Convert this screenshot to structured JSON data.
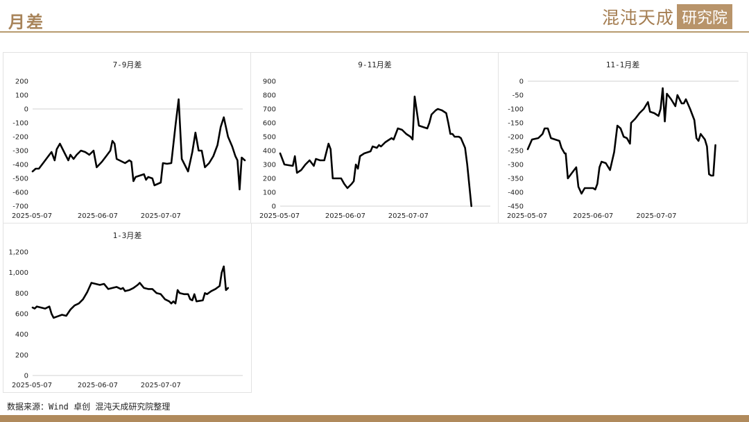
{
  "header": {
    "title": "月差"
  },
  "logo": {
    "part1": "混沌天成",
    "part2": "研究院"
  },
  "footer": {
    "source": "数据来源：Wind 卓创 混沌天成研究院整理"
  },
  "colors": {
    "line": "#000000",
    "accent": "#b08a5c",
    "axis": "#d0d0d0"
  },
  "chart_data": [
    {
      "type": "line",
      "title": "7-9月差",
      "x_ticks": [
        "2025-05-07",
        "2025-06-07",
        "2025-07-07"
      ],
      "ylim": [
        -700,
        200
      ],
      "y_ticks": [
        200,
        100,
        0,
        -100,
        -200,
        -300,
        -400,
        -500,
        -600,
        -700
      ],
      "zero_line": 0,
      "x_range": [
        0,
        100
      ],
      "tick_positions": [
        0,
        31,
        61
      ],
      "series": [
        {
          "values": [
            [
              0,
              -450
            ],
            [
              1.5,
              -430
            ],
            [
              3,
              -430
            ],
            [
              6,
              -370
            ],
            [
              8,
              -330
            ],
            [
              9,
              -310
            ],
            [
              10.5,
              -370
            ],
            [
              11.5,
              -290
            ],
            [
              13,
              -250
            ],
            [
              15,
              -310
            ],
            [
              17,
              -370
            ],
            [
              18,
              -330
            ],
            [
              19.5,
              -360
            ],
            [
              21,
              -330
            ],
            [
              23,
              -300
            ],
            [
              25,
              -310
            ],
            [
              27,
              -330
            ],
            [
              29,
              -300
            ],
            [
              30.5,
              -420
            ],
            [
              33,
              -380
            ],
            [
              35,
              -340
            ],
            [
              37,
              -300
            ],
            [
              38,
              -230
            ],
            [
              39,
              -250
            ],
            [
              40,
              -360
            ],
            [
              42,
              -375
            ],
            [
              44,
              -390
            ],
            [
              46,
              -370
            ],
            [
              47,
              -380
            ],
            [
              48,
              -520
            ],
            [
              49,
              -490
            ],
            [
              51,
              -480
            ],
            [
              53,
              -470
            ],
            [
              54,
              -510
            ],
            [
              55,
              -490
            ],
            [
              57,
              -500
            ],
            [
              58,
              -550
            ],
            [
              61,
              -530
            ],
            [
              62,
              -390
            ],
            [
              64,
              -395
            ],
            [
              66,
              -390
            ],
            [
              68,
              -120
            ],
            [
              69.5,
              70
            ],
            [
              71,
              -360
            ],
            [
              74,
              -450
            ],
            [
              76,
              -310
            ],
            [
              77.5,
              -170
            ],
            [
              79,
              -300
            ],
            [
              80.5,
              -300
            ],
            [
              82,
              -420
            ],
            [
              84,
              -390
            ],
            [
              86,
              -340
            ],
            [
              88,
              -260
            ],
            [
              89.5,
              -130
            ],
            [
              91,
              -60
            ],
            [
              93,
              -200
            ],
            [
              95,
              -270
            ],
            [
              96.5,
              -340
            ],
            [
              97.5,
              -370
            ],
            [
              98.5,
              -580
            ],
            [
              99.5,
              -350
            ],
            [
              101,
              -370
            ]
          ]
        }
      ]
    },
    {
      "type": "line",
      "title": "9-11月差",
      "x_ticks": [
        "2025-05-07",
        "2025-06-07",
        "2025-07-07"
      ],
      "ylim": [
        0,
        900
      ],
      "y_ticks": [
        900,
        800,
        700,
        600,
        500,
        400,
        300,
        200,
        100,
        0
      ],
      "zero_line": 0,
      "x_range": [
        0,
        100
      ],
      "tick_positions": [
        0,
        31,
        61
      ],
      "series": [
        {
          "values": [
            [
              0,
              380
            ],
            [
              2,
              300
            ],
            [
              4,
              295
            ],
            [
              6,
              290
            ],
            [
              7,
              360
            ],
            [
              8,
              240
            ],
            [
              10,
              260
            ],
            [
              12,
              300
            ],
            [
              14,
              330
            ],
            [
              16,
              290
            ],
            [
              17,
              340
            ],
            [
              19,
              330
            ],
            [
              21,
              330
            ],
            [
              23,
              450
            ],
            [
              24,
              410
            ],
            [
              25,
              200
            ],
            [
              27,
              200
            ],
            [
              29,
              200
            ],
            [
              30.5,
              160
            ],
            [
              32,
              130
            ],
            [
              34,
              160
            ],
            [
              35,
              180
            ],
            [
              36,
              300
            ],
            [
              37,
              270
            ],
            [
              38,
              360
            ],
            [
              40,
              380
            ],
            [
              42,
              390
            ],
            [
              43,
              395
            ],
            [
              44,
              430
            ],
            [
              46,
              420
            ],
            [
              47,
              440
            ],
            [
              48,
              430
            ],
            [
              50,
              460
            ],
            [
              51,
              470
            ],
            [
              53,
              490
            ],
            [
              54,
              480
            ],
            [
              56,
              560
            ],
            [
              58,
              550
            ],
            [
              60,
              520
            ],
            [
              62,
              500
            ],
            [
              63,
              480
            ],
            [
              64,
              790
            ],
            [
              66,
              580
            ],
            [
              68,
              570
            ],
            [
              70,
              560
            ],
            [
              71,
              600
            ],
            [
              72,
              660
            ],
            [
              74,
              690
            ],
            [
              75,
              700
            ],
            [
              77,
              690
            ],
            [
              79,
              670
            ],
            [
              80,
              600
            ],
            [
              81,
              520
            ],
            [
              82,
              520
            ],
            [
              83,
              500
            ],
            [
              85,
              500
            ],
            [
              86,
              490
            ],
            [
              88,
              420
            ],
            [
              89,
              300
            ],
            [
              91,
              0
            ]
          ]
        }
      ]
    },
    {
      "type": "line",
      "title": "11-1月差",
      "x_ticks": [
        "2025-05-07",
        "2025-06-07",
        "2025-07-07"
      ],
      "ylim": [
        -450,
        0
      ],
      "y_ticks": [
        0,
        -50,
        -100,
        -150,
        -200,
        -250,
        -300,
        -350,
        -400,
        -450
      ],
      "zero_line": 0,
      "x_range": [
        0,
        100
      ],
      "tick_positions": [
        0,
        31,
        61
      ],
      "series": [
        {
          "values": [
            [
              0,
              -245
            ],
            [
              2,
              -210
            ],
            [
              5,
              -205
            ],
            [
              7,
              -190
            ],
            [
              8,
              -170
            ],
            [
              9.5,
              -170
            ],
            [
              11,
              -205
            ],
            [
              13,
              -210
            ],
            [
              15,
              -215
            ],
            [
              16,
              -240
            ],
            [
              17.5,
              -260
            ],
            [
              18,
              -260
            ],
            [
              19,
              -350
            ],
            [
              21,
              -330
            ],
            [
              23,
              -310
            ],
            [
              24,
              -380
            ],
            [
              25.5,
              -405
            ],
            [
              27,
              -385
            ],
            [
              29,
              -385
            ],
            [
              31,
              -385
            ],
            [
              32,
              -390
            ],
            [
              33,
              -370
            ],
            [
              34,
              -310
            ],
            [
              35,
              -290
            ],
            [
              37,
              -295
            ],
            [
              39,
              -320
            ],
            [
              41,
              -255
            ],
            [
              42.5,
              -160
            ],
            [
              44,
              -170
            ],
            [
              45.5,
              -200
            ],
            [
              47,
              -205
            ],
            [
              48.5,
              -225
            ],
            [
              49,
              -150
            ],
            [
              51,
              -135
            ],
            [
              53,
              -115
            ],
            [
              55,
              -100
            ],
            [
              57,
              -75
            ],
            [
              58,
              -110
            ],
            [
              60,
              -115
            ],
            [
              62,
              -125
            ],
            [
              63,
              -100
            ],
            [
              64,
              -25
            ],
            [
              65,
              -145
            ],
            [
              66,
              -45
            ],
            [
              68,
              -65
            ],
            [
              70,
              -90
            ],
            [
              71,
              -50
            ],
            [
              73,
              -80
            ],
            [
              74,
              -80
            ],
            [
              75,
              -65
            ],
            [
              77,
              -100
            ],
            [
              79,
              -140
            ],
            [
              80,
              -205
            ],
            [
              81,
              -215
            ],
            [
              82,
              -190
            ],
            [
              84,
              -210
            ],
            [
              85,
              -235
            ],
            [
              86,
              -335
            ],
            [
              87,
              -340
            ],
            [
              88,
              -340
            ],
            [
              89,
              -230
            ]
          ]
        }
      ]
    },
    {
      "type": "line",
      "title": "1-3月差",
      "x_ticks": [
        "2025-05-07",
        "2025-06-07",
        "2025-07-07"
      ],
      "ylim": [
        0,
        1200
      ],
      "y_ticks": [
        "1,200",
        "1,000",
        "800",
        "600",
        "400",
        "200",
        "0"
      ],
      "y_tick_values": [
        1200,
        1000,
        800,
        600,
        400,
        200,
        0
      ],
      "zero_line": 0,
      "x_range": [
        0,
        100
      ],
      "tick_positions": [
        0,
        31,
        61
      ],
      "series": [
        {
          "values": [
            [
              0,
              660
            ],
            [
              1,
              650
            ],
            [
              2,
              670
            ],
            [
              4,
              660
            ],
            [
              6,
              650
            ],
            [
              8,
              670
            ],
            [
              9,
              600
            ],
            [
              10,
              560
            ],
            [
              12,
              575
            ],
            [
              14,
              590
            ],
            [
              16,
              580
            ],
            [
              18,
              640
            ],
            [
              20,
              680
            ],
            [
              22,
              700
            ],
            [
              24,
              740
            ],
            [
              26,
              810
            ],
            [
              28,
              900
            ],
            [
              30,
              890
            ],
            [
              32,
              880
            ],
            [
              34,
              890
            ],
            [
              36,
              840
            ],
            [
              38,
              850
            ],
            [
              40,
              860
            ],
            [
              42,
              840
            ],
            [
              43,
              850
            ],
            [
              44,
              820
            ],
            [
              46,
              830
            ],
            [
              48,
              850
            ],
            [
              50,
              880
            ],
            [
              51,
              900
            ],
            [
              53,
              850
            ],
            [
              55,
              840
            ],
            [
              57,
              840
            ],
            [
              59,
              800
            ],
            [
              61,
              790
            ],
            [
              63,
              740
            ],
            [
              65,
              720
            ],
            [
              66,
              700
            ],
            [
              67,
              720
            ],
            [
              68,
              700
            ],
            [
              69,
              830
            ],
            [
              70,
              800
            ],
            [
              72,
              790
            ],
            [
              74,
              790
            ],
            [
              75,
              740
            ],
            [
              76,
              730
            ],
            [
              77,
              790
            ],
            [
              78,
              720
            ],
            [
              81,
              730
            ],
            [
              82,
              800
            ],
            [
              83,
              790
            ],
            [
              85,
              820
            ],
            [
              87,
              840
            ],
            [
              89,
              870
            ],
            [
              90,
              1000
            ],
            [
              91,
              1060
            ],
            [
              92,
              830
            ],
            [
              93,
              850
            ]
          ]
        }
      ]
    }
  ]
}
